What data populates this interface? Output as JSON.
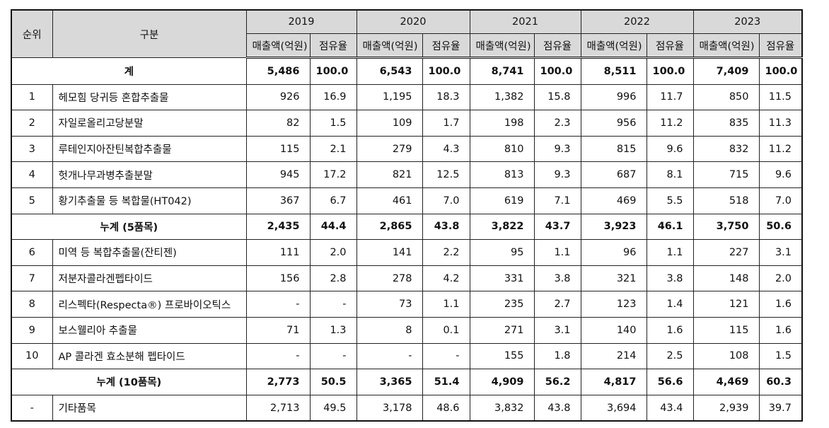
{
  "header": {
    "rank": "순위",
    "category": "구분",
    "years": [
      "2019",
      "2020",
      "2021",
      "2022",
      "2023"
    ],
    "sales": "매출액(억원)",
    "share": "점유율"
  },
  "rows": [
    {
      "type": "sum",
      "label": "계",
      "values": [
        "5,486",
        "100.0",
        "6,543",
        "100.0",
        "8,741",
        "100.0",
        "8,511",
        "100.0",
        "7,409",
        "100.0"
      ]
    },
    {
      "type": "item",
      "rank": "1",
      "name": "헤모힘 당귀등 혼합추출물",
      "values": [
        "926",
        "16.9",
        "1,195",
        "18.3",
        "1,382",
        "15.8",
        "996",
        "11.7",
        "850",
        "11.5"
      ]
    },
    {
      "type": "item",
      "rank": "2",
      "name": "자일로올리고당분말",
      "values": [
        "82",
        "1.5",
        "109",
        "1.7",
        "198",
        "2.3",
        "956",
        "11.2",
        "835",
        "11.3"
      ]
    },
    {
      "type": "item",
      "rank": "3",
      "name": "루테인지아잔틴복합추출물",
      "values": [
        "115",
        "2.1",
        "279",
        "4.3",
        "810",
        "9.3",
        "815",
        "9.6",
        "832",
        "11.2"
      ]
    },
    {
      "type": "item",
      "rank": "4",
      "name": "헛개나무과병추출분말",
      "values": [
        "945",
        "17.2",
        "821",
        "12.5",
        "813",
        "9.3",
        "687",
        "8.1",
        "715",
        "9.6"
      ]
    },
    {
      "type": "item",
      "rank": "5",
      "name": "황기추출물 등 복합물(HT042)",
      "values": [
        "367",
        "6.7",
        "461",
        "7.0",
        "619",
        "7.1",
        "469",
        "5.5",
        "518",
        "7.0"
      ]
    },
    {
      "type": "sum",
      "label": "누계 (5품목)",
      "values": [
        "2,435",
        "44.4",
        "2,865",
        "43.8",
        "3,822",
        "43.7",
        "3,923",
        "46.1",
        "3,750",
        "50.6"
      ]
    },
    {
      "type": "item",
      "rank": "6",
      "name": "미역 등 복합추출물(잔티젠)",
      "values": [
        "111",
        "2.0",
        "141",
        "2.2",
        "95",
        "1.1",
        "96",
        "1.1",
        "227",
        "3.1"
      ]
    },
    {
      "type": "item",
      "rank": "7",
      "name": "저분자콜라겐펩타이드",
      "values": [
        "156",
        "2.8",
        "278",
        "4.2",
        "331",
        "3.8",
        "321",
        "3.8",
        "148",
        "2.0"
      ]
    },
    {
      "type": "item",
      "rank": "8",
      "name": "리스펙타(Respecta®) 프로바이오틱스",
      "values": [
        "-",
        "-",
        "73",
        "1.1",
        "235",
        "2.7",
        "123",
        "1.4",
        "121",
        "1.6"
      ]
    },
    {
      "type": "item",
      "rank": "9",
      "name": "보스웰리아 추출물",
      "values": [
        "71",
        "1.3",
        "8",
        "0.1",
        "271",
        "3.1",
        "140",
        "1.6",
        "115",
        "1.6"
      ]
    },
    {
      "type": "item",
      "rank": "10",
      "name": "AP 콜라겐 효소분해 펩타이드",
      "values": [
        "-",
        "-",
        "-",
        "-",
        "155",
        "1.8",
        "214",
        "2.5",
        "108",
        "1.5"
      ]
    },
    {
      "type": "sum",
      "label": "누계 (10품목)",
      "values": [
        "2,773",
        "50.5",
        "3,365",
        "51.4",
        "4,909",
        "56.2",
        "4,817",
        "56.6",
        "4,469",
        "60.3"
      ]
    },
    {
      "type": "item",
      "rank": "-",
      "name": "기타품목",
      "values": [
        "2,713",
        "49.5",
        "3,178",
        "48.6",
        "3,832",
        "43.8",
        "3,694",
        "43.4",
        "2,939",
        "39.7"
      ]
    }
  ]
}
